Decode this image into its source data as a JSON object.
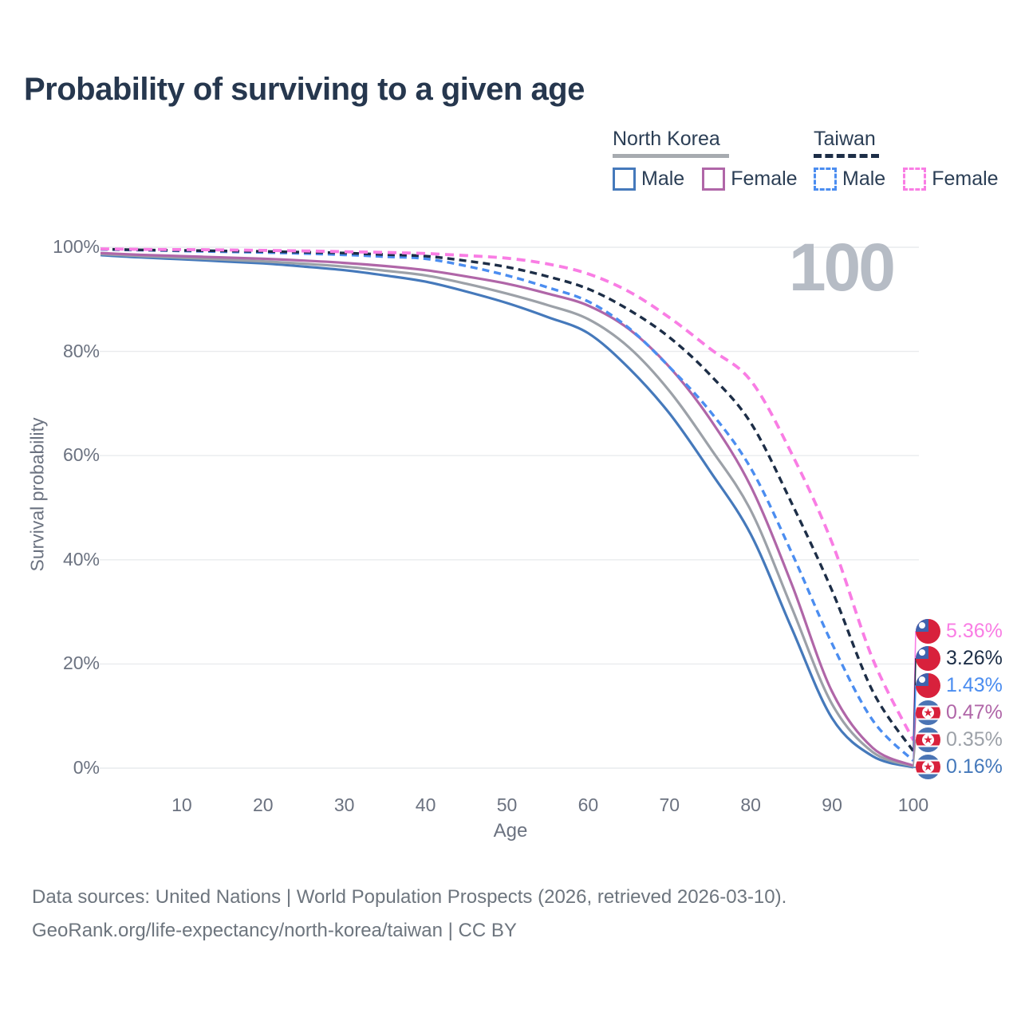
{
  "page": {
    "title": "Probability of surviving to a given age"
  },
  "legend": {
    "groups": [
      {
        "name": "North Korea",
        "line_style": "solid",
        "underline_color": "#a7abb0",
        "items": [
          {
            "label": "Male",
            "color": "#4579bb"
          },
          {
            "label": "Female",
            "color": "#b066a8"
          }
        ]
      },
      {
        "name": "Taiwan",
        "line_style": "dashed",
        "underline_color": "#1d2e47",
        "items": [
          {
            "label": "Male",
            "color": "#4b8df0"
          },
          {
            "label": "Female",
            "color": "#f97de4"
          }
        ]
      }
    ]
  },
  "chart_data": {
    "type": "line",
    "title": "Probability of surviving to a given age",
    "xlabel": "Age",
    "ylabel": "Survival probability",
    "xlim": [
      0,
      100
    ],
    "ylim": [
      0,
      100
    ],
    "grid": "horizontal",
    "legend_position": "top-right",
    "watermark_age": "100",
    "x_tick_labels": [
      "10",
      "20",
      "30",
      "40",
      "50",
      "60",
      "70",
      "80",
      "90",
      "100"
    ],
    "x_tick_values": [
      10,
      20,
      30,
      40,
      50,
      60,
      70,
      80,
      90,
      100
    ],
    "y_tick_labels": [
      "100%",
      "80%",
      "60%",
      "40%",
      "20%",
      "0%"
    ],
    "y_tick_values": [
      100,
      80,
      60,
      40,
      20,
      0
    ],
    "x": [
      0,
      5,
      10,
      15,
      20,
      25,
      30,
      35,
      40,
      45,
      50,
      55,
      60,
      65,
      70,
      75,
      80,
      85,
      90,
      95,
      100
    ],
    "series": [
      {
        "id": "taiwan-female",
        "name": "Taiwan Female",
        "country": "taiwan",
        "sex": "female",
        "style": "dashed",
        "color": "#f97de4",
        "width": 3.8,
        "dash": "11 7",
        "end_label": "5.36%",
        "values": [
          99.7,
          99.6,
          99.55,
          99.5,
          99.4,
          99.3,
          99.15,
          99.0,
          98.8,
          98.4,
          97.9,
          96.8,
          94.9,
          91.5,
          86.5,
          80.5,
          74.4,
          60.5,
          43.3,
          21.0,
          5.36
        ]
      },
      {
        "id": "taiwan-both",
        "name": "Taiwan",
        "country": "taiwan",
        "sex": "both",
        "style": "dashed",
        "color": "#1d2e47",
        "width": 3.4,
        "dash": "9 6",
        "end_label": "3.26%",
        "values": [
          99.65,
          99.5,
          99.4,
          99.3,
          99.2,
          99.05,
          98.9,
          98.6,
          98.3,
          97.4,
          96.2,
          94.4,
          92.0,
          88.0,
          82.7,
          75.5,
          66.3,
          51.0,
          34.1,
          14.8,
          3.26
        ]
      },
      {
        "id": "taiwan-male",
        "name": "Taiwan Male",
        "country": "taiwan",
        "sex": "male",
        "style": "dashed",
        "color": "#4b8df0",
        "width": 3.4,
        "dash": "9 6",
        "end_label": "1.43%",
        "values": [
          99.6,
          99.45,
          99.3,
          99.15,
          99.0,
          98.8,
          98.55,
          98.2,
          97.8,
          96.4,
          94.6,
          92.3,
          89.6,
          84.5,
          77.0,
          68.5,
          57.6,
          41.5,
          23.9,
          9.2,
          1.43
        ]
      },
      {
        "id": "north-korea-female",
        "name": "North Korea Female",
        "country": "north-korea",
        "sex": "female",
        "style": "solid",
        "color": "#b066a8",
        "width": 3.2,
        "dash": "",
        "end_label": "0.47%",
        "values": [
          98.9,
          98.55,
          98.3,
          98.05,
          97.8,
          97.45,
          97.0,
          96.4,
          95.6,
          94.4,
          93.0,
          91.1,
          88.8,
          84.3,
          77.0,
          67.0,
          54.1,
          35.5,
          14.7,
          3.9,
          0.47
        ]
      },
      {
        "id": "north-korea-both",
        "name": "North Korea",
        "country": "north-korea",
        "sex": "both",
        "style": "solid",
        "color": "#9ca1a8",
        "width": 3.2,
        "dash": "",
        "end_label": "0.35%",
        "values": [
          98.7,
          98.3,
          98.0,
          97.65,
          97.3,
          96.85,
          96.3,
          95.5,
          94.6,
          93.0,
          91.1,
          88.9,
          86.2,
          80.8,
          72.4,
          61.5,
          49.5,
          31.0,
          12.3,
          3.1,
          0.35
        ]
      },
      {
        "id": "north-korea-male",
        "name": "North Korea Male",
        "country": "north-korea",
        "sex": "male",
        "style": "solid",
        "color": "#4579bb",
        "width": 3.2,
        "dash": "",
        "end_label": "0.16%",
        "values": [
          98.5,
          98.05,
          97.7,
          97.3,
          96.9,
          96.3,
          95.6,
          94.6,
          93.4,
          91.5,
          89.3,
          86.6,
          83.5,
          76.8,
          68.1,
          57.0,
          44.9,
          27.0,
          9.6,
          2.3,
          0.16
        ]
      }
    ]
  },
  "footer": {
    "line1": "Data sources: United Nations | World Population Prospects (2026, retrieved 2026-03-10).",
    "line2": "GeoRank.org/life-expectancy/north-korea/taiwan | CC BY"
  }
}
